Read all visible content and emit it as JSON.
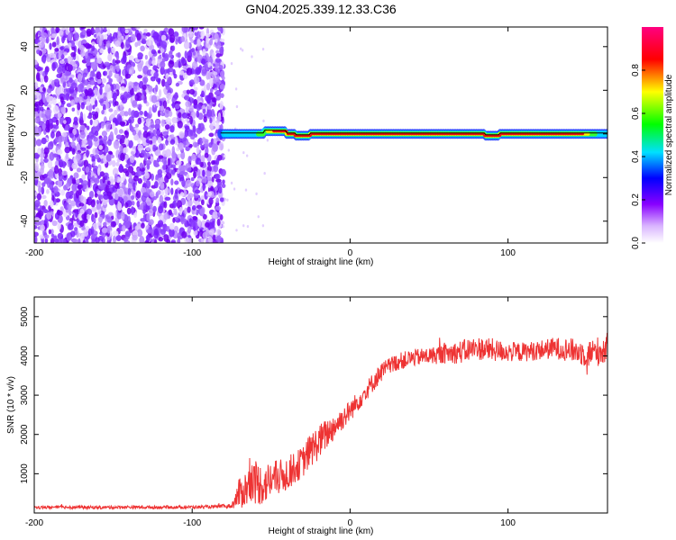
{
  "title": "GN04.2025.339.12.33.C36",
  "chart_data": [
    {
      "type": "heatmap",
      "title": "GN04.2025.339.12.33.C36",
      "xlabel": "Height of straight line (km)",
      "ylabel": "Frequency (Hz)",
      "xlim": [
        -200,
        163
      ],
      "ylim": [
        -50,
        49
      ],
      "xticks": [
        -200,
        -100,
        0,
        100
      ],
      "yticks": [
        -40,
        -20,
        0,
        20,
        40
      ],
      "noise_region_x": [
        -200,
        -80
      ],
      "signal_band": {
        "x_start": -82,
        "x_end": 163,
        "center_hz": 0,
        "width_hz": 3
      },
      "colorbar": {
        "label": "Normalized spectral amplitude",
        "range": [
          0,
          1
        ],
        "ticks": [
          0.0,
          0.2,
          0.4,
          0.6,
          0.8
        ],
        "colors": [
          "#ffffff",
          "#8800ff",
          "#0000ff",
          "#00e0ff",
          "#00ff00",
          "#ffff00",
          "#ff0000",
          "#ff0080"
        ]
      }
    },
    {
      "type": "line",
      "xlabel": "Height of straight line (km)",
      "ylabel": "SNR (10 * v/v)",
      "xlim": [
        -200,
        163
      ],
      "ylim": [
        0,
        5500
      ],
      "xticks": [
        -200,
        -100,
        0,
        100
      ],
      "yticks": [
        1000,
        2000,
        3000,
        4000,
        5000
      ],
      "series": [
        {
          "name": "SNR",
          "color": "#ee3333",
          "x": [
            -200,
            -180,
            -160,
            -140,
            -120,
            -100,
            -85,
            -75,
            -70,
            -65,
            -60,
            -55,
            -50,
            -45,
            -40,
            -35,
            -30,
            -25,
            -20,
            -15,
            -10,
            -5,
            0,
            10,
            20,
            30,
            40,
            50,
            60,
            70,
            80,
            90,
            100,
            110,
            120,
            130,
            140,
            150,
            160,
            163
          ],
          "y": [
            140,
            150,
            140,
            150,
            145,
            150,
            160,
            180,
            500,
            650,
            800,
            700,
            850,
            900,
            1000,
            1150,
            1300,
            1600,
            1800,
            2000,
            2200,
            2400,
            2600,
            3100,
            3600,
            3850,
            3950,
            4000,
            4050,
            4100,
            4200,
            4150,
            4100,
            4100,
            4150,
            4200,
            4150,
            4050,
            4150,
            4200
          ],
          "noise_amplitude": [
            40,
            40,
            40,
            40,
            40,
            40,
            40,
            60,
            400,
            500,
            600,
            500,
            500,
            450,
            450,
            400,
            400,
            450,
            450,
            400,
            350,
            300,
            280,
            250,
            250,
            220,
            220,
            220,
            250,
            300,
            300,
            300,
            250,
            250,
            250,
            280,
            300,
            350,
            400,
            400
          ]
        }
      ]
    }
  ]
}
